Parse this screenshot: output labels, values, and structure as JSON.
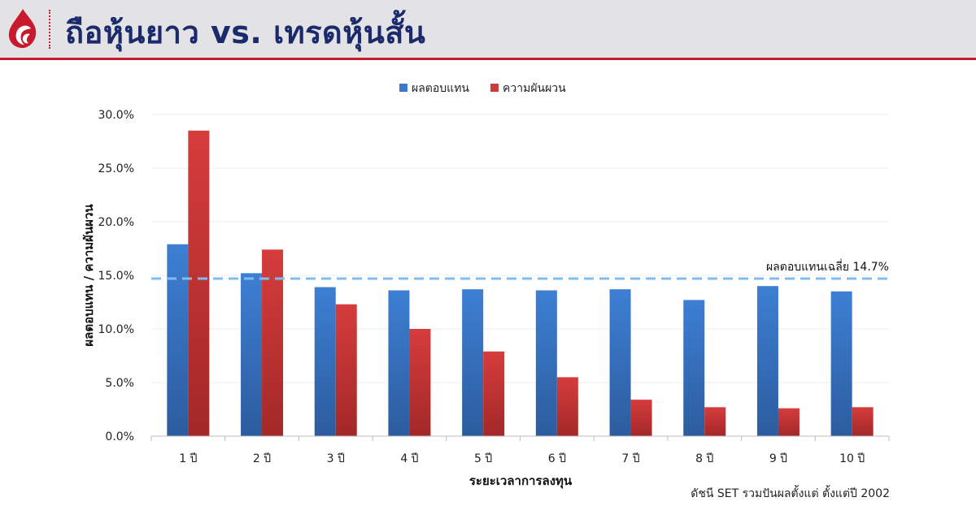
{
  "header": {
    "title": "ถือหุ้นยาว vs. เทรดหุ้นสั้น"
  },
  "colors": {
    "header_bg": "#e3e3e6",
    "accent_red": "#c8192e",
    "title_navy": "#1b2a6b",
    "series_blue": "#3b78c9",
    "series_red": "#cf3a3a",
    "avg_line": "#7fbdf0"
  },
  "footnote": "ดัชนี SET รวมปันผลตั้งแต่ ตั้งแต่ปี 2002",
  "chart_data": {
    "type": "bar",
    "categories": [
      "1 ปี",
      "2 ปี",
      "3 ปี",
      "4 ปี",
      "5 ปี",
      "6 ปี",
      "7 ปี",
      "8 ปี",
      "9 ปี",
      "10 ปี"
    ],
    "series": [
      {
        "name": "ผลตอบแทน",
        "color": "#3b78c9",
        "values": [
          17.9,
          15.2,
          13.9,
          13.6,
          13.7,
          13.6,
          13.7,
          12.7,
          14.0,
          13.5
        ]
      },
      {
        "name": "ความผันผวน",
        "color": "#cf3a3a",
        "values": [
          28.5,
          17.4,
          12.3,
          10.0,
          7.9,
          5.5,
          3.4,
          2.7,
          2.6,
          2.7
        ]
      }
    ],
    "reference_line": {
      "value": 14.7,
      "label": "ผลตอบแทนเฉลี่ย 14.7%"
    },
    "xlabel": "ระยะเวลาการลงทุน",
    "ylabel": "ผลตอบแทน / ความผันผวน",
    "ylim": [
      0,
      30
    ],
    "yticks": [
      "0.0%",
      "5.0%",
      "10.0%",
      "15.0%",
      "20.0%",
      "25.0%",
      "30.0%"
    ],
    "grid": true,
    "legend_position": "top-center"
  }
}
